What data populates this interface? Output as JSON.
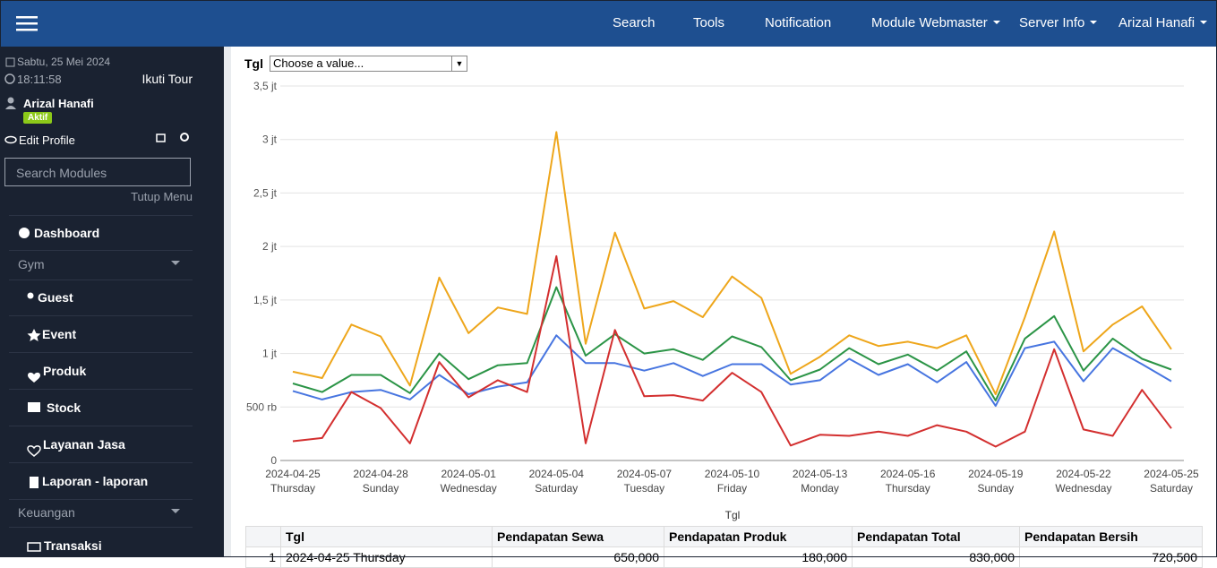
{
  "navbar": {
    "items": [
      "Search",
      "Tools",
      "Notification",
      "Module Webmaster",
      "Server Info",
      "Arizal Hanafi"
    ]
  },
  "sidebar": {
    "date": "Sabtu, 25 Mei 2024",
    "time": "18:11:58",
    "tour": "Ikuti Tour",
    "user": "Arizal Hanafi",
    "status": "Aktif",
    "edit_profile": "Edit Profile",
    "search_placeholder": "Search Modules",
    "close_menu": "Tutup Menu",
    "menu": [
      {
        "label": "Dashboard"
      },
      {
        "section": "Gym",
        "items": [
          "Guest",
          "Event",
          "Produk",
          "Stock",
          "Layanan Jasa",
          "Laporan - laporan"
        ]
      },
      {
        "section": "Keuangan",
        "items": [
          "Transaksi"
        ]
      }
    ]
  },
  "filter": {
    "label": "Tgl",
    "placeholder": "Choose a value..."
  },
  "chart_data": {
    "type": "line",
    "xlabel": "Tgl",
    "categories": [
      "2024-04-25",
      null,
      null,
      "2024-04-28",
      null,
      null,
      "2024-05-01",
      null,
      null,
      "2024-05-04",
      null,
      null,
      "2024-05-07",
      null,
      null,
      "2024-05-10",
      null,
      null,
      "2024-05-13",
      null,
      null,
      "2024-05-16",
      null,
      null,
      "2024-05-19",
      null,
      null,
      "2024-05-22",
      null,
      null,
      "2024-05-25"
    ],
    "weekdays": [
      "Thursday",
      null,
      null,
      "Sunday",
      null,
      null,
      "Wednesday",
      null,
      null,
      "Saturday",
      null,
      null,
      "Tuesday",
      null,
      null,
      "Friday",
      null,
      null,
      "Monday",
      null,
      null,
      "Thursday",
      null,
      null,
      "Sunday",
      null,
      null,
      "Wednesday",
      null,
      null,
      "Saturday"
    ],
    "series": [
      {
        "color": "#eea61b",
        "values": [
          830000,
          770000,
          1270000,
          1160000,
          700000,
          1710000,
          1190000,
          1430000,
          1370000,
          3070000,
          1090000,
          2130000,
          1420000,
          1490000,
          1340000,
          1720000,
          1520000,
          810000,
          970000,
          1170000,
          1070000,
          1110000,
          1050000,
          1170000,
          620000,
          1340000,
          2140000,
          1020000,
          1270000,
          1440000,
          1040000
        ]
      },
      {
        "color": "#2b9446",
        "values": [
          720500,
          640000,
          800000,
          800000,
          630000,
          1000000,
          760000,
          890000,
          910000,
          1620000,
          980000,
          1180000,
          1000000,
          1040000,
          940000,
          1160000,
          1060000,
          750000,
          850000,
          1050000,
          900000,
          990000,
          840000,
          1020000,
          560000,
          1140000,
          1350000,
          840000,
          1140000,
          950000,
          850000
        ]
      },
      {
        "color": "#4775e0",
        "values": [
          650000,
          570000,
          640000,
          660000,
          570000,
          800000,
          620000,
          690000,
          730000,
          1170000,
          910000,
          910000,
          840000,
          910000,
          790000,
          900000,
          900000,
          710000,
          750000,
          950000,
          800000,
          900000,
          730000,
          920000,
          510000,
          1050000,
          1110000,
          740000,
          1050000,
          900000,
          740000
        ]
      },
      {
        "color": "#d32f2f",
        "values": [
          180000,
          210000,
          640000,
          490000,
          160000,
          920000,
          590000,
          750000,
          640000,
          1910000,
          160000,
          1220000,
          600000,
          610000,
          560000,
          820000,
          640000,
          140000,
          240000,
          230000,
          270000,
          230000,
          330000,
          270000,
          130000,
          270000,
          1040000,
          290000,
          230000,
          660000,
          300000
        ]
      }
    ],
    "ylim": [
      0,
      3500000
    ],
    "yticks": [
      0,
      {
        "value": 500000,
        "label": "500 rb"
      },
      {
        "value": 1000000,
        "label": "1 jt"
      },
      {
        "value": 1500000,
        "label": "1,5 jt"
      },
      {
        "value": 2000000,
        "label": "2 jt"
      },
      {
        "value": 2500000,
        "label": "2,5 jt"
      },
      {
        "value": 3000000,
        "label": "3 jt"
      },
      {
        "value": 3500000,
        "label": "3,5 jt"
      }
    ],
    "grid": true
  },
  "table": {
    "columns": [
      "Tgl",
      "Pendapatan Sewa",
      "Pendapatan Produk",
      "Pendapatan Total",
      "Pendapatan Bersih"
    ],
    "rows": [
      [
        "1",
        "2024-04-25 Thursday",
        "650,000",
        "180,000",
        "830,000",
        "720,500"
      ]
    ]
  }
}
